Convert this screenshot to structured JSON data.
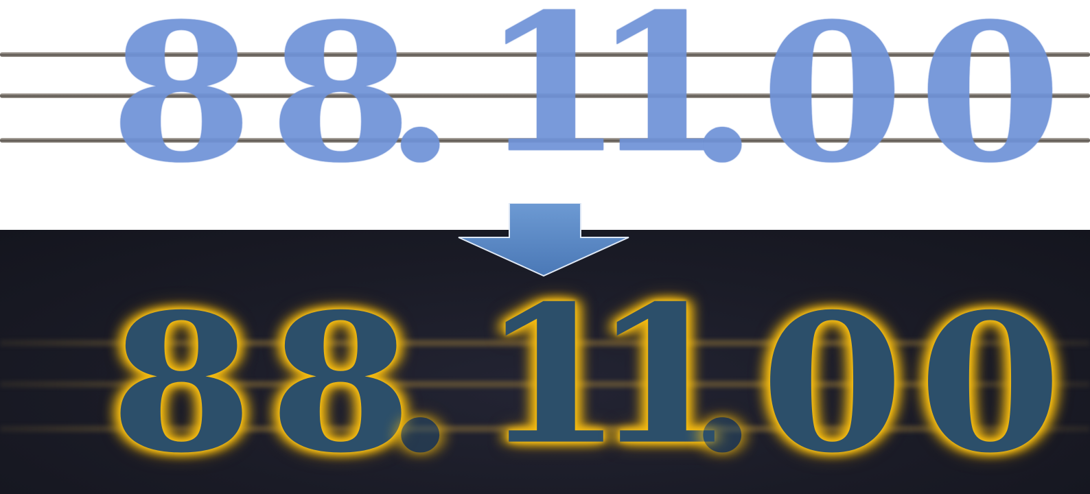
{
  "figure": {
    "top_panel": {
      "stamp_text": "88.11.00",
      "characters": [
        "8",
        "8",
        ".",
        "1",
        "1",
        ".",
        "0",
        "0"
      ],
      "ink_color": "#6f93d8",
      "thread_color": "#6e6861",
      "thread_count": 3,
      "background": "#ffffff"
    },
    "arrow": {
      "icon": "down-arrow-icon",
      "color": "#5b8ac6"
    },
    "bottom_panel": {
      "stamp_text": "88.11.00",
      "characters": [
        "8",
        "8",
        ".",
        "1",
        "1",
        ".",
        "0",
        "0"
      ],
      "glow_color": "#f6c21a",
      "glyph_color": "#2c4f6a",
      "background": "#1a1b26"
    }
  }
}
